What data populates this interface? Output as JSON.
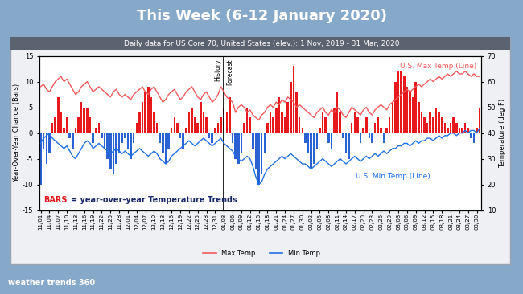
{
  "slide": {
    "title": "This Week (6-12 January 2020)",
    "logo": "weather trends 360"
  },
  "chart_data": {
    "type": "bar",
    "title": "Daily data for US Core 70, United States (elev.): 1 Nov, 2019 - 31 Mar, 2020",
    "y_label": "Year-Over-Year Change (Bars)",
    "y2_label": "Temperature (deg F)",
    "categories": [
      "11/01",
      null,
      null,
      "11/04",
      null,
      null,
      "11/07",
      null,
      null,
      "11/10",
      null,
      null,
      "11/13",
      null,
      null,
      "11/16",
      null,
      null,
      "11/19",
      null,
      null,
      "11/22",
      null,
      null,
      "11/25",
      null,
      null,
      "11/28",
      null,
      null,
      "12/01",
      null,
      null,
      "12/04",
      null,
      null,
      "12/07",
      null,
      null,
      "12/10",
      null,
      null,
      "12/13",
      null,
      null,
      "12/16",
      null,
      null,
      "12/19",
      null,
      null,
      "12/22",
      null,
      null,
      "12/25",
      null,
      null,
      "12/28",
      null,
      null,
      "12/31",
      null,
      null,
      "01/03",
      null,
      null,
      "01/06",
      null,
      null,
      "01/09",
      null,
      null,
      "01/12",
      null,
      null,
      "01/15",
      null,
      null,
      "01/18",
      null,
      null,
      "01/21",
      null,
      null,
      "01/24",
      null,
      null,
      "01/27",
      null,
      null,
      "01/30",
      null,
      null,
      "02/02",
      null,
      null,
      "02/05",
      null,
      null,
      "02/08",
      null,
      null,
      "02/11",
      null,
      null,
      "02/14",
      null,
      null,
      "02/17",
      null,
      null,
      "02/20",
      null,
      null,
      "02/23",
      null,
      null,
      "02/26",
      null,
      null,
      "02/29",
      null,
      null,
      "03/03",
      null,
      null,
      "03/06",
      null,
      null,
      "03/09",
      null,
      null,
      "03/12",
      null,
      null,
      "03/15",
      null,
      null,
      "03/18",
      null,
      null,
      "03/21",
      null,
      null,
      "03/24",
      null,
      null,
      "03/27",
      null,
      null,
      "03/30",
      null
    ],
    "series": [
      {
        "type": "bar",
        "values": [
          -10,
          -3,
          -6,
          -4,
          2,
          3,
          7,
          4,
          1,
          3,
          -1,
          -3,
          1,
          3,
          6,
          5,
          5,
          3,
          -2,
          1,
          2,
          -1,
          -3,
          -5,
          -7,
          -8,
          -6,
          -4,
          -2,
          -1,
          -3,
          -5,
          -2,
          2,
          4,
          6,
          8,
          9,
          7,
          4,
          2,
          -2,
          -4,
          -6,
          -3,
          1,
          3,
          2,
          -1,
          -3,
          1,
          4,
          5,
          3,
          2,
          6,
          4,
          3,
          -1,
          -2,
          1,
          2,
          3,
          5,
          4,
          7,
          -2,
          -5,
          -6,
          -4,
          2,
          5,
          3,
          -3,
          -7,
          -10,
          -8,
          -4,
          2,
          4,
          3,
          5,
          7,
          4,
          3,
          6,
          10,
          13,
          8,
          3,
          1,
          -2,
          -4,
          -7,
          -6,
          -3,
          1,
          4,
          3,
          -2,
          -3,
          5,
          8,
          4,
          -1,
          -4,
          -5,
          2,
          4,
          3,
          -2,
          1,
          3,
          -1,
          -2,
          2,
          3,
          1,
          -2,
          1,
          3,
          6,
          10,
          12,
          12,
          11,
          9,
          8,
          7,
          10,
          6,
          4,
          3,
          2,
          4,
          3,
          5,
          4,
          3,
          2,
          1,
          2,
          3,
          2,
          1,
          1,
          2,
          1,
          -1,
          -2,
          1,
          5
        ],
        "colors": [
          "#2a62d4",
          "#2a62d4",
          "#2a62d4",
          "#2a62d4",
          "#e8191c",
          "#e8191c",
          "#e8191c",
          "#e8191c",
          "#e8191c",
          "#e8191c",
          "#2a62d4",
          "#2a62d4",
          "#e8191c",
          "#e8191c",
          "#e8191c",
          "#e8191c",
          "#e8191c",
          "#e8191c",
          "#2a62d4",
          "#e8191c",
          "#e8191c",
          "#2a62d4",
          "#2a62d4",
          "#2a62d4",
          "#2a62d4",
          "#2a62d4",
          "#2a62d4",
          "#2a62d4",
          "#2a62d4",
          "#2a62d4",
          "#2a62d4",
          "#2a62d4",
          "#2a62d4",
          "#e8191c",
          "#e8191c",
          "#e8191c",
          "#e8191c",
          "#e8191c",
          "#e8191c",
          "#e8191c",
          "#e8191c",
          "#2a62d4",
          "#2a62d4",
          "#2a62d4",
          "#2a62d4",
          "#e8191c",
          "#e8191c",
          "#e8191c",
          "#2a62d4",
          "#2a62d4",
          "#e8191c",
          "#e8191c",
          "#e8191c",
          "#e8191c",
          "#e8191c",
          "#e8191c",
          "#e8191c",
          "#e8191c",
          "#2a62d4",
          "#2a62d4",
          "#e8191c",
          "#e8191c",
          "#e8191c",
          "#e8191c",
          "#e8191c",
          "#e8191c",
          "#2a62d4",
          "#2a62d4",
          "#2a62d4",
          "#2a62d4",
          "#e8191c",
          "#e8191c",
          "#e8191c",
          "#2a62d4",
          "#2a62d4",
          "#2a62d4",
          "#2a62d4",
          "#2a62d4",
          "#e8191c",
          "#e8191c",
          "#e8191c",
          "#e8191c",
          "#e8191c",
          "#e8191c",
          "#e8191c",
          "#e8191c",
          "#e8191c",
          "#e8191c",
          "#e8191c",
          "#e8191c",
          "#e8191c",
          "#2a62d4",
          "#2a62d4",
          "#2a62d4",
          "#2a62d4",
          "#2a62d4",
          "#e8191c",
          "#e8191c",
          "#e8191c",
          "#2a62d4",
          "#2a62d4",
          "#e8191c",
          "#e8191c",
          "#e8191c",
          "#2a62d4",
          "#2a62d4",
          "#2a62d4",
          "#e8191c",
          "#e8191c",
          "#e8191c",
          "#2a62d4",
          "#e8191c",
          "#e8191c",
          "#2a62d4",
          "#2a62d4",
          "#e8191c",
          "#e8191c",
          "#e8191c",
          "#2a62d4",
          "#e8191c",
          "#e8191c",
          "#e8191c",
          "#e8191c",
          "#e8191c",
          "#e8191c",
          "#e8191c",
          "#e8191c",
          "#e8191c",
          "#e8191c",
          "#e8191c",
          "#e8191c",
          "#e8191c",
          "#e8191c",
          "#e8191c",
          "#e8191c",
          "#e8191c",
          "#e8191c",
          "#e8191c",
          "#e8191c",
          "#e8191c",
          "#e8191c",
          "#e8191c",
          "#e8191c",
          "#e8191c",
          "#e8191c",
          "#e8191c",
          "#e8191c",
          "#e8191c",
          "#2a62d4",
          "#2a62d4",
          "#e8191c",
          "#e8191c"
        ]
      },
      {
        "name": "Max Temp",
        "type": "line",
        "axis": "y2",
        "color": "#f25a5a",
        "values": [
          58,
          59,
          57,
          56,
          58,
          60,
          61,
          62,
          60,
          61,
          59,
          57,
          55,
          56,
          58,
          59,
          60,
          58,
          56,
          57,
          58,
          57,
          56,
          55,
          54,
          56,
          57,
          55,
          54,
          55,
          54,
          53,
          55,
          56,
          57,
          58,
          56,
          55,
          57,
          58,
          56,
          54,
          52,
          53,
          55,
          56,
          57,
          55,
          53,
          54,
          56,
          57,
          58,
          56,
          54,
          53,
          55,
          56,
          54,
          52,
          53,
          55,
          58,
          56,
          54,
          53,
          52,
          48,
          50,
          51,
          50,
          48,
          49,
          47,
          46,
          45,
          47,
          48,
          50,
          51,
          50,
          52,
          51,
          53,
          52,
          54,
          53,
          52,
          50,
          51,
          50,
          49,
          48,
          47,
          46,
          48,
          49,
          50,
          48,
          47,
          49,
          48,
          50,
          49,
          47,
          46,
          48,
          50,
          49,
          48,
          47,
          49,
          50,
          48,
          47,
          49,
          50,
          51,
          50,
          49,
          51,
          52,
          53,
          54,
          55,
          56,
          57,
          56,
          57,
          58,
          59,
          58,
          59,
          60,
          61,
          60,
          61,
          62,
          61,
          62,
          63,
          62,
          63,
          64,
          63,
          63,
          64,
          63,
          62,
          63,
          62,
          62
        ]
      },
      {
        "name": "Min Temp",
        "type": "line",
        "axis": "y2",
        "color": "#1f6fe8",
        "values": [
          36,
          38,
          39,
          40,
          38,
          37,
          36,
          35,
          34,
          35,
          33,
          31,
          30,
          32,
          34,
          36,
          37,
          36,
          34,
          35,
          36,
          35,
          34,
          33,
          32,
          33,
          34,
          33,
          32,
          33,
          32,
          31,
          32,
          33,
          34,
          33,
          32,
          31,
          32,
          33,
          32,
          30,
          29,
          28,
          29,
          31,
          32,
          33,
          34,
          35,
          36,
          37,
          36,
          35,
          36,
          37,
          38,
          37,
          36,
          35,
          36,
          37,
          38,
          36,
          35,
          34,
          33,
          31,
          30,
          29,
          30,
          31,
          30,
          27,
          23,
          20,
          21,
          24,
          26,
          27,
          28,
          29,
          30,
          31,
          30,
          31,
          32,
          31,
          30,
          29,
          28,
          28,
          27,
          26,
          27,
          28,
          29,
          30,
          29,
          28,
          27,
          28,
          29,
          30,
          29,
          28,
          29,
          30,
          31,
          30,
          29,
          30,
          31,
          30,
          31,
          32,
          31,
          32,
          33,
          32,
          33,
          34,
          34,
          35,
          35,
          36,
          36,
          35,
          36,
          37,
          36,
          37,
          37,
          38,
          38,
          37,
          38,
          39,
          38,
          39,
          39,
          40,
          40,
          39,
          40,
          40,
          41,
          40,
          41,
          41,
          40,
          42
        ]
      }
    ],
    "ylim": [
      -15,
      15
    ],
    "yticks": [
      -15,
      -10,
      -5,
      0,
      5,
      10,
      15
    ],
    "y2lim": [
      10,
      70
    ],
    "y2ticks": [
      10,
      20,
      30,
      40,
      50,
      60,
      70
    ],
    "legend": "lower center",
    "divider": {
      "x": "01/03",
      "left": "History",
      "right": "Forecast"
    },
    "annotations": [
      {
        "text": "U.S. Max Temp (Line)",
        "color": "#f25a5a"
      },
      {
        "text": "U.S. Min Temp (Line)",
        "color": "#1f6fe8"
      }
    ],
    "note": [
      {
        "text": "BARS",
        "color": "#e8191c"
      },
      {
        "text": "= year-over-year Temperature Trends",
        "color": "#1a2a6c"
      }
    ]
  }
}
